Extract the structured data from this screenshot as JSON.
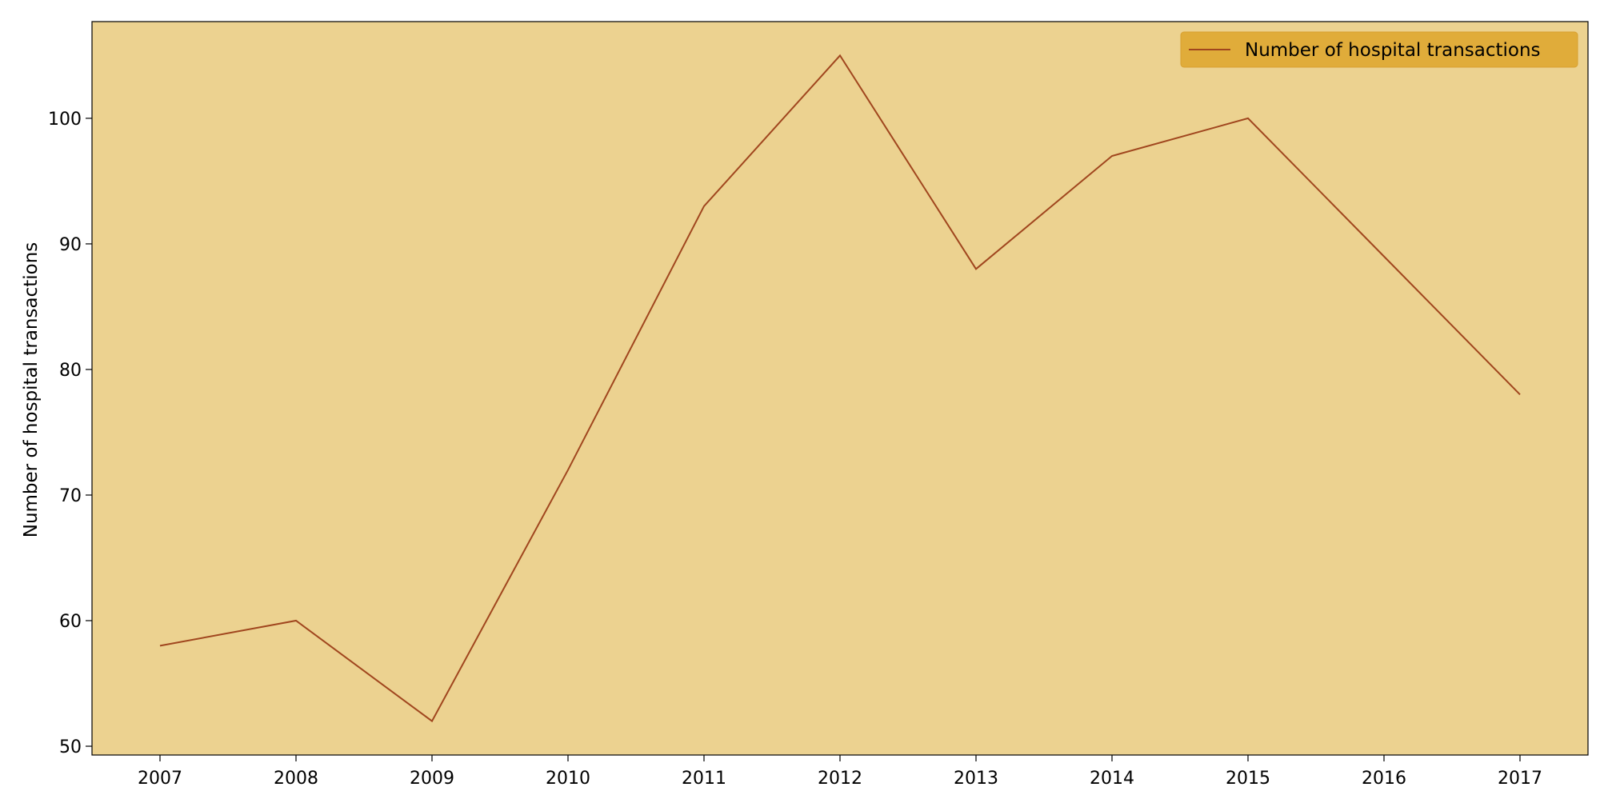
{
  "chart_data": {
    "type": "line",
    "title": "",
    "xlabel": "",
    "ylabel": "Number of hospital transactions",
    "x": [
      2007,
      2008,
      2009,
      2010,
      2011,
      2012,
      2013,
      2014,
      2015,
      2016,
      2017
    ],
    "x_tick_labels": [
      "2007",
      "2008",
      "2009",
      "2010",
      "2011",
      "2012",
      "2013",
      "2014",
      "2015",
      "2016",
      "2017"
    ],
    "series": [
      {
        "name": "Number of hospital transactions",
        "values": [
          58,
          60,
          52,
          72,
          93,
          105,
          88,
          97,
          100,
          89,
          78
        ],
        "color": "#a0461e"
      }
    ],
    "xlim": [
      2006.5,
      2017.5
    ],
    "ylim": [
      49.3,
      107.7
    ],
    "y_ticks": [
      50,
      60,
      70,
      80,
      90,
      100
    ],
    "y_tick_labels": [
      "50",
      "60",
      "70",
      "80",
      "90",
      "100"
    ],
    "grid": false,
    "legend_position": "top-right",
    "colors": {
      "plot_background": "#ecd290",
      "legend_background": "#e0ac3a",
      "axes_border": "#000000"
    }
  }
}
